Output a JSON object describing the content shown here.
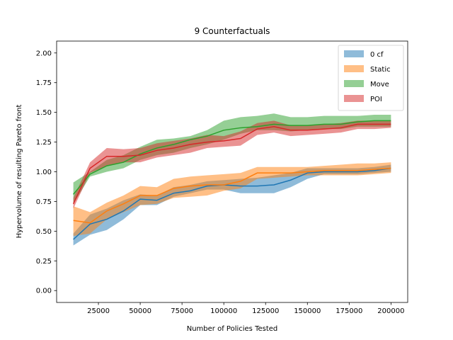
{
  "chart_data": {
    "type": "line",
    "title": "9 Counterfactuals",
    "xlabel": "Number of Policies Tested",
    "ylabel": "Hypervolume of resulting Pareto front",
    "xlim": [
      0,
      210000
    ],
    "ylim": [
      -0.1,
      2.1
    ],
    "xticks": [
      25000,
      50000,
      75000,
      100000,
      125000,
      150000,
      175000,
      200000
    ],
    "yticks": [
      0.0,
      0.25,
      0.5,
      0.75,
      1.0,
      1.25,
      1.5,
      1.75,
      2.0
    ],
    "xtick_labels": [
      "25000",
      "50000",
      "75000",
      "100000",
      "125000",
      "150000",
      "175000",
      "200000"
    ],
    "ytick_labels": [
      "0.00",
      "0.25",
      "0.50",
      "0.75",
      "1.00",
      "1.25",
      "1.50",
      "1.75",
      "2.00"
    ],
    "grid": false,
    "legend_position": "top-right",
    "x": [
      10000,
      20000,
      30000,
      40000,
      50000,
      60000,
      70000,
      80000,
      90000,
      100000,
      110000,
      120000,
      130000,
      140000,
      150000,
      160000,
      170000,
      180000,
      190000,
      200000
    ],
    "series": [
      {
        "name": "0 cf",
        "color": "#1f77b4",
        "values": [
          0.43,
          0.56,
          0.6,
          0.67,
          0.77,
          0.76,
          0.82,
          0.84,
          0.88,
          0.89,
          0.88,
          0.88,
          0.89,
          0.93,
          0.99,
          1.0,
          1.0,
          1.0,
          1.01,
          1.03
        ],
        "lower": [
          0.38,
          0.47,
          0.51,
          0.6,
          0.72,
          0.72,
          0.79,
          0.82,
          0.85,
          0.85,
          0.82,
          0.82,
          0.82,
          0.87,
          0.94,
          0.98,
          0.98,
          0.98,
          0.99,
          1.0
        ],
        "upper": [
          0.48,
          0.64,
          0.69,
          0.76,
          0.81,
          0.8,
          0.87,
          0.89,
          0.92,
          0.93,
          0.94,
          0.95,
          0.97,
          0.99,
          1.03,
          1.03,
          1.03,
          1.03,
          1.04,
          1.06
        ]
      },
      {
        "name": "Static",
        "color": "#ff7f0e",
        "values": [
          0.59,
          0.57,
          0.67,
          0.73,
          0.8,
          0.8,
          0.86,
          0.88,
          0.89,
          0.89,
          0.92,
          0.99,
          0.99,
          0.99,
          1.0,
          1.01,
          1.01,
          1.01,
          1.02,
          1.03
        ],
        "lower": [
          0.46,
          0.48,
          0.6,
          0.66,
          0.72,
          0.73,
          0.78,
          0.79,
          0.8,
          0.84,
          0.86,
          0.94,
          0.95,
          0.96,
          0.97,
          0.97,
          0.97,
          0.97,
          0.98,
          0.99
        ],
        "upper": [
          0.71,
          0.66,
          0.74,
          0.8,
          0.88,
          0.87,
          0.94,
          0.96,
          0.97,
          0.98,
          0.99,
          1.04,
          1.04,
          1.04,
          1.04,
          1.05,
          1.06,
          1.07,
          1.07,
          1.08
        ]
      },
      {
        "name": "Move",
        "color": "#2ca02c",
        "values": [
          0.81,
          0.98,
          1.05,
          1.08,
          1.15,
          1.2,
          1.23,
          1.27,
          1.3,
          1.35,
          1.37,
          1.38,
          1.4,
          1.39,
          1.39,
          1.4,
          1.4,
          1.42,
          1.43,
          1.43
        ],
        "lower": [
          0.73,
          0.96,
          1.0,
          1.03,
          1.1,
          1.14,
          1.16,
          1.2,
          1.23,
          1.27,
          1.32,
          1.35,
          1.35,
          1.34,
          1.35,
          1.36,
          1.36,
          1.38,
          1.38,
          1.38
        ],
        "upper": [
          0.91,
          1.0,
          1.1,
          1.14,
          1.21,
          1.27,
          1.28,
          1.3,
          1.35,
          1.43,
          1.46,
          1.47,
          1.49,
          1.46,
          1.46,
          1.47,
          1.47,
          1.47,
          1.48,
          1.48
        ]
      },
      {
        "name": "POI",
        "color": "#d62728",
        "values": [
          0.73,
          1.03,
          1.13,
          1.13,
          1.14,
          1.18,
          1.2,
          1.23,
          1.25,
          1.26,
          1.28,
          1.36,
          1.38,
          1.35,
          1.35,
          1.36,
          1.37,
          1.4,
          1.4,
          1.4
        ],
        "lower": [
          0.69,
          0.99,
          1.05,
          1.08,
          1.08,
          1.12,
          1.14,
          1.16,
          1.2,
          1.21,
          1.22,
          1.31,
          1.33,
          1.3,
          1.31,
          1.32,
          1.33,
          1.36,
          1.36,
          1.37
        ],
        "upper": [
          0.78,
          1.08,
          1.2,
          1.19,
          1.2,
          1.24,
          1.26,
          1.28,
          1.31,
          1.3,
          1.34,
          1.41,
          1.43,
          1.39,
          1.39,
          1.4,
          1.41,
          1.43,
          1.43,
          1.43
        ]
      }
    ]
  }
}
